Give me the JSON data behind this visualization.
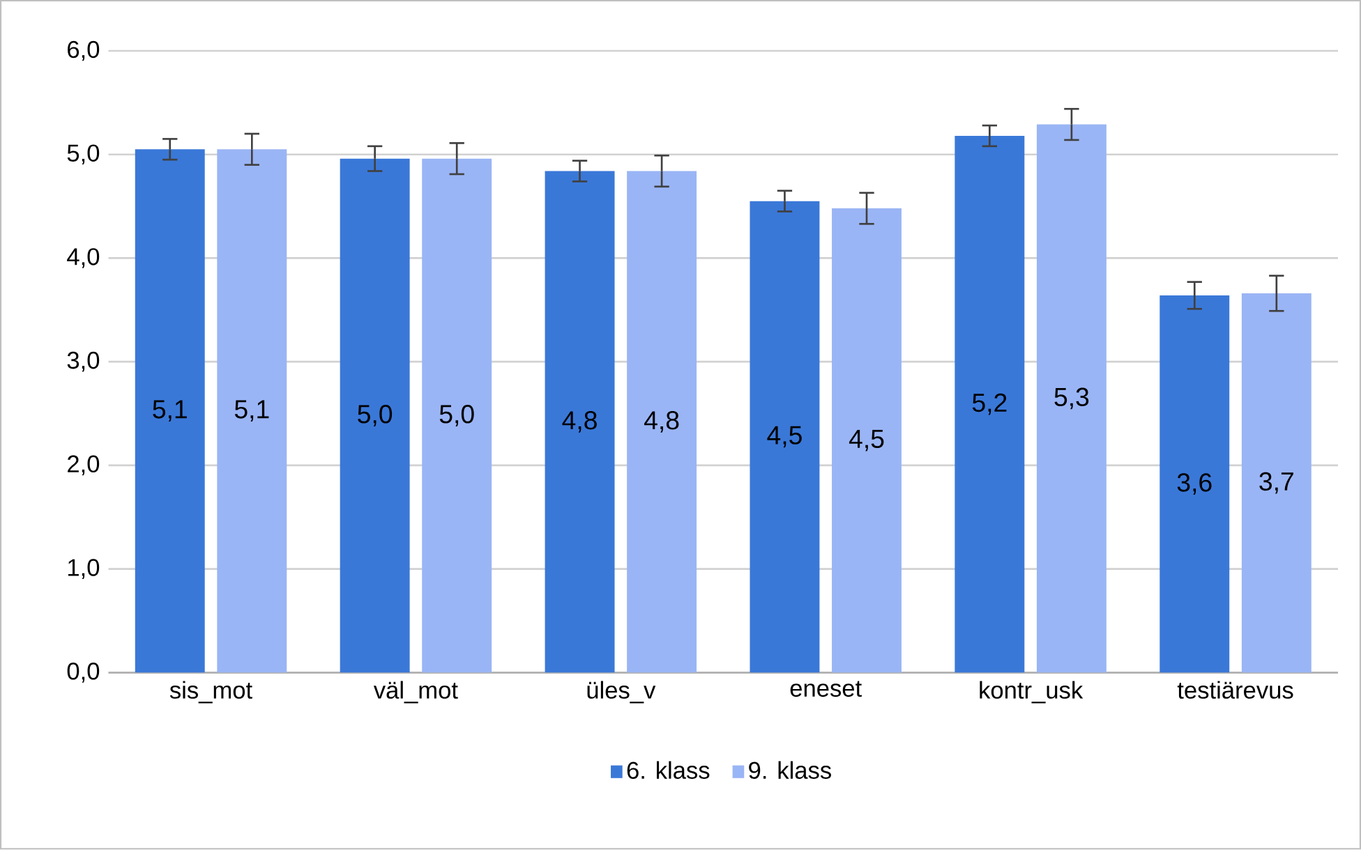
{
  "chart_data": {
    "type": "bar",
    "categories": [
      "sis_mot",
      "väl_mot",
      "üles_v",
      "eneset",
      "kontr_usk",
      "testiärevus"
    ],
    "series": [
      {
        "name": "6. klass",
        "color": "#3a78d8",
        "values": [
          5.05,
          4.96,
          4.84,
          4.55,
          5.18,
          3.64
        ],
        "errors": [
          0.1,
          0.12,
          0.1,
          0.1,
          0.1,
          0.13
        ],
        "value_labels": [
          "5,1",
          "5,0",
          "4,8",
          "4,5",
          "5,2",
          "3,6"
        ]
      },
      {
        "name": "9. klass",
        "color": "#9ab5f5",
        "values": [
          5.05,
          4.96,
          4.84,
          4.48,
          5.29,
          3.66
        ],
        "errors": [
          0.15,
          0.15,
          0.15,
          0.15,
          0.15,
          0.17
        ],
        "value_labels": [
          "5,1",
          "5,0",
          "4,8",
          "4,5",
          "5,3",
          "3,7"
        ]
      }
    ],
    "ylim": [
      0,
      6
    ],
    "yticks": [
      {
        "value": 0,
        "label": "0,0"
      },
      {
        "value": 1,
        "label": "1,0"
      },
      {
        "value": 2,
        "label": "2,0"
      },
      {
        "value": 3,
        "label": "3,0"
      },
      {
        "value": 4,
        "label": "4,0"
      },
      {
        "value": 5,
        "label": "5,0"
      },
      {
        "value": 6,
        "label": "6,0"
      }
    ],
    "grid": "y",
    "legend": "bottom"
  }
}
